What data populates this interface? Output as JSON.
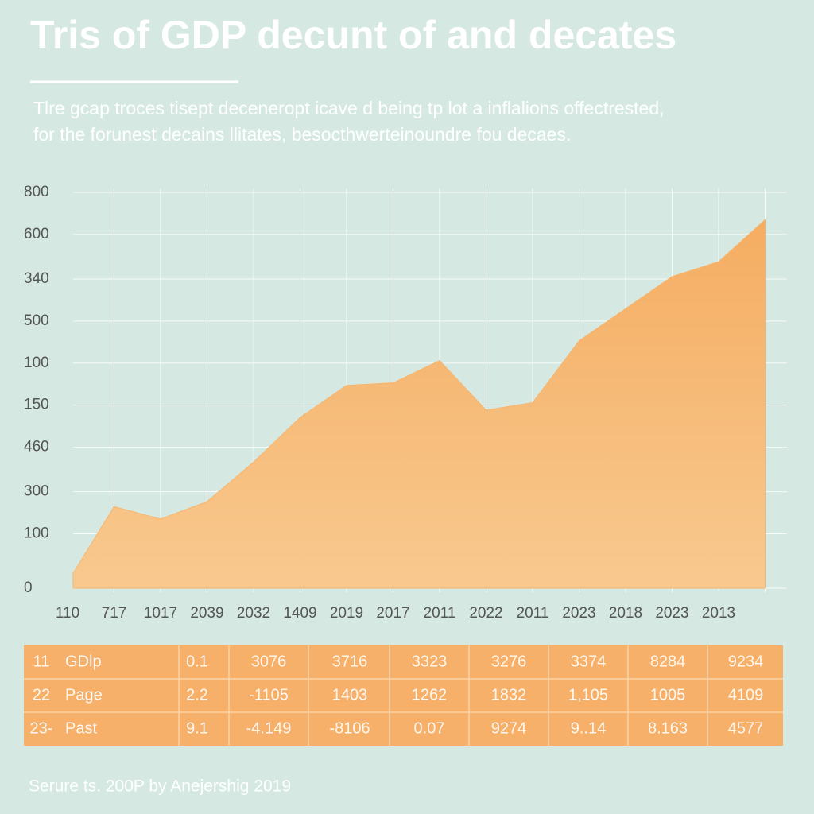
{
  "header": {
    "title": "Tris of GDP decunt of and decates",
    "subtitle": [
      "Tlre gcap troces tisept deceneropt icave d being tp lot a inflalions offectrested,",
      "for the forunest decains llitates, besocthwerteinoundre fou decaes."
    ]
  },
  "chart_data": {
    "type": "area",
    "color": "#f6b56f",
    "categories": [
      "110",
      "717",
      "1017",
      "2039",
      "2032",
      "1409",
      "2019",
      "2017",
      "2011",
      "2022",
      "2011",
      "2023",
      "2018",
      "2023",
      "2013",
      null
    ],
    "values": [
      30,
      165,
      140,
      175,
      255,
      345,
      410,
      415,
      460,
      360,
      375,
      500,
      565,
      630,
      660,
      745
    ],
    "ylim": [
      0,
      800
    ],
    "yticks": [
      0,
      {
        "value": 110,
        "label": "100"
      },
      {
        "value": 195,
        "label": "300"
      },
      {
        "value": 285,
        "label": "460"
      },
      {
        "value": 370,
        "label": "150"
      },
      {
        "value": 455,
        "label": "100"
      },
      {
        "value": 540,
        "label": "500"
      },
      {
        "value": 625,
        "label": "340"
      },
      {
        "value": 715,
        "label": "600"
      },
      800
    ],
    "grid": true
  },
  "table": {
    "rows": [
      [
        "11",
        "GDlp",
        "0.1",
        "3076",
        "3716",
        "3323",
        "3276",
        "3374",
        "8284",
        "9234"
      ],
      [
        "22",
        "Page",
        "2.2",
        "-1105",
        "1403",
        "1262",
        "1832",
        "1,105",
        "1005",
        "4109"
      ],
      [
        "23-",
        "Past",
        "9.1",
        "-4.149",
        "-8106",
        "0.07",
        "9274",
        "9..14",
        "8.163",
        "4577"
      ]
    ]
  },
  "footer": {
    "source": "Serure ts. 200P by Anejershig 2019"
  }
}
